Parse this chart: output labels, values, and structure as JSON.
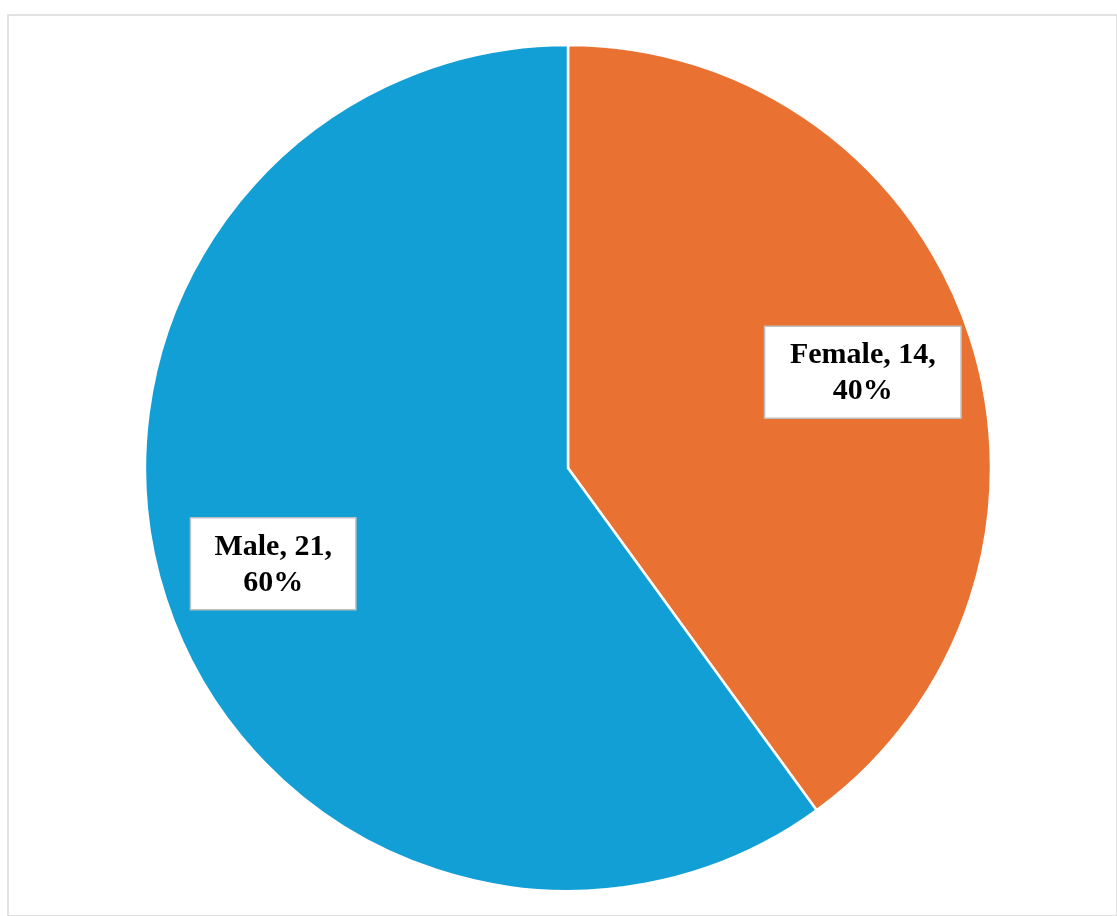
{
  "chart_data": {
    "type": "pie",
    "categories": [
      "Female",
      "Male"
    ],
    "values": [
      14,
      21
    ],
    "colors": [
      "#e97132",
      "#119fd6"
    ],
    "value_labels": [
      "14, 40%",
      "21, 60%"
    ]
  }
}
